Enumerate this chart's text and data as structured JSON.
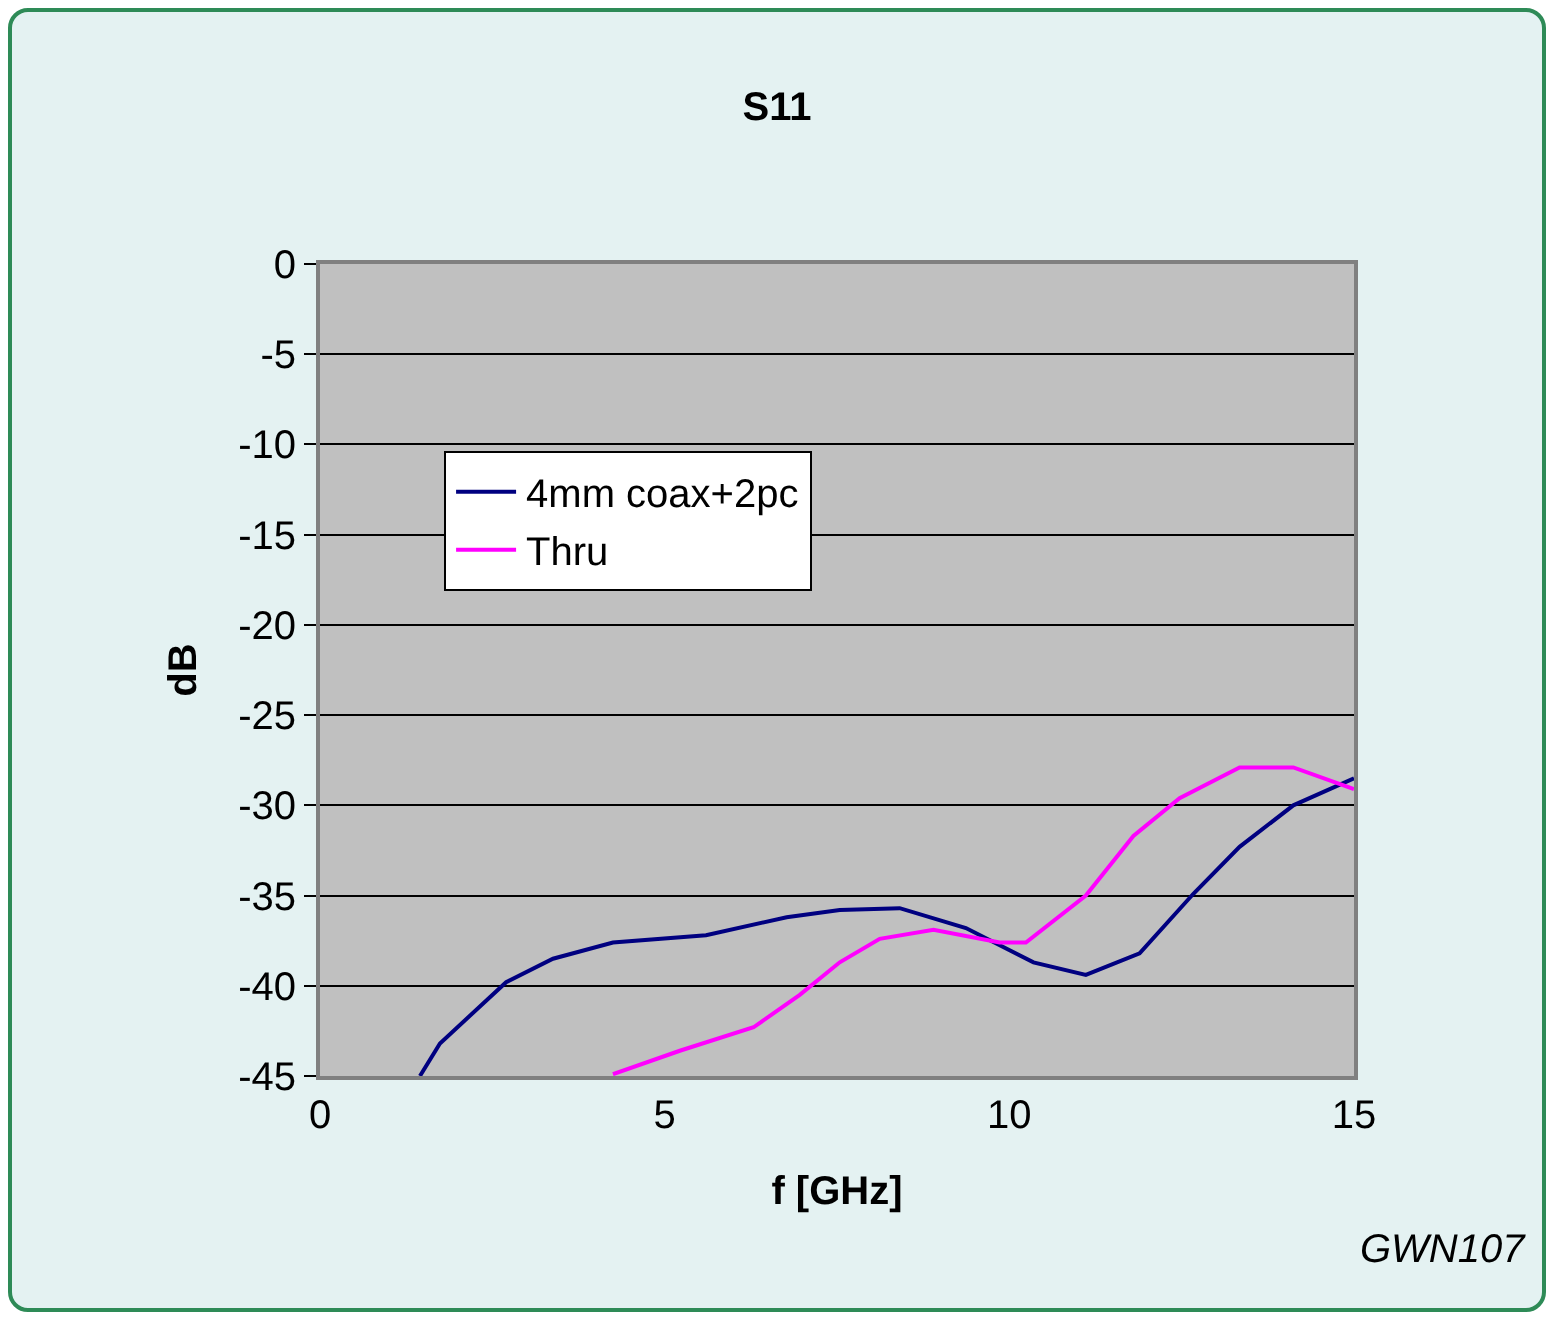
{
  "chart_data": {
    "type": "line",
    "title": "S11",
    "xlabel": "f [GHz]",
    "ylabel": "dB",
    "xlim": [
      0,
      15
    ],
    "xticks": [
      0,
      5,
      10,
      15
    ],
    "ylim": [
      -45,
      0
    ],
    "yticks": [
      0,
      -5,
      -10,
      -15,
      -20,
      -25,
      -30,
      -35,
      -40,
      -45
    ],
    "grid": "y",
    "legend": "top left",
    "marker": "none",
    "line_style": "solid",
    "annotations": [
      "GWN107"
    ],
    "series": [
      {
        "name": "4mm coax+2pc",
        "color": "#000080",
        "x": [
          1.45,
          1.74,
          2.7,
          3.38,
          4.25,
          5.6,
          6.77,
          7.54,
          8.41,
          9.37,
          10.35,
          11.11,
          11.89,
          12.67,
          13.34,
          14.12,
          15
        ],
        "values": [
          -45,
          -43.2,
          -39.8,
          -38.5,
          -37.6,
          -37.2,
          -36.2,
          -35.8,
          -35.7,
          -36.8,
          -38.7,
          -39.4,
          -38.2,
          -34.9,
          -32.3,
          -30,
          -28.5
        ]
      },
      {
        "name": "Thru",
        "color": "#ff00ff",
        "x": [
          4.25,
          5.22,
          6.29,
          6.96,
          7.54,
          8.12,
          8.9,
          9.86,
          10.24,
          11.11,
          11.8,
          12.47,
          13.34,
          14.12,
          15
        ],
        "values": [
          -44.9,
          -43.6,
          -42.3,
          -40.5,
          -38.7,
          -37.4,
          -36.9,
          -37.6,
          -37.6,
          -35,
          -31.7,
          -29.6,
          -27.9,
          -27.9,
          -29.1
        ]
      }
    ]
  }
}
